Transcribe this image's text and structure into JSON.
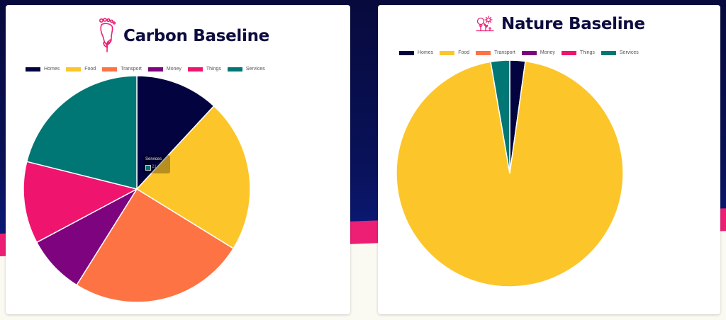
{
  "colors": {
    "Homes": "#03033f",
    "Food": "#fcc62a",
    "Transport": "#fd7343",
    "Money": "#7e037e",
    "Things": "#ef156f",
    "Services": "#007774"
  },
  "icons": {
    "carbon": "footprint-icon",
    "nature": "nature-scene-icon"
  },
  "chart_data": [
    {
      "type": "pie",
      "title": "Carbon Baseline",
      "categories": [
        "Homes",
        "Food",
        "Transport",
        "Money",
        "Things",
        "Services"
      ],
      "values": [
        11.9,
        21.9,
        25.1,
        8.3,
        11.7,
        21.1
      ],
      "legend": "top",
      "tooltip": {
        "label": "Services",
        "value": "21.1"
      }
    },
    {
      "type": "pie",
      "title": "Nature Baseline",
      "categories": [
        "Homes",
        "Food",
        "Transport",
        "Money",
        "Things",
        "Services"
      ],
      "values": [
        2.2,
        95.1,
        0,
        0,
        0,
        2.7
      ],
      "legend": "top"
    }
  ]
}
